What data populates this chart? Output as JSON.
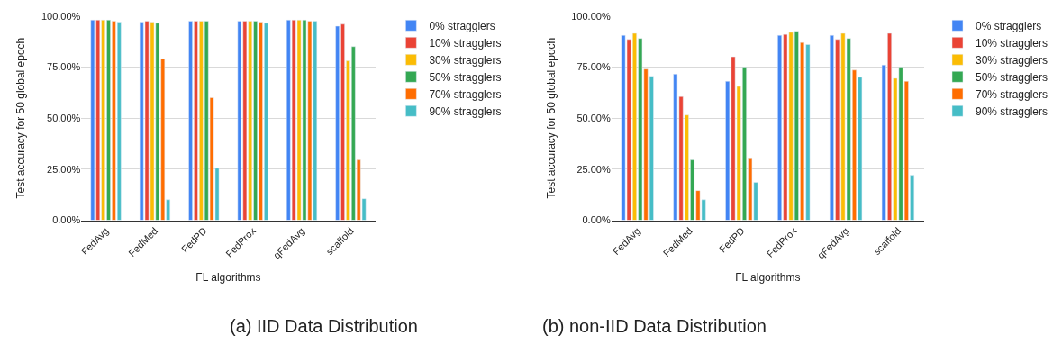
{
  "chart_data": [
    {
      "type": "bar",
      "title": "(a) IID Data Distribution",
      "xlabel": "FL algorithms",
      "ylabel": "Test accuracy for 50 global epoch",
      "categories": [
        "FedAvg",
        "FedMed",
        "FedPD",
        "FedProx",
        "qFedAvg",
        "scaffold"
      ],
      "series": [
        {
          "name": "0% stragglers",
          "color": "#4285f4",
          "values": [
            98,
            97,
            97.5,
            97.5,
            98,
            95
          ]
        },
        {
          "name": "10% stragglers",
          "color": "#ea4335",
          "values": [
            98,
            97.5,
            97.5,
            97.5,
            98,
            96
          ]
        },
        {
          "name": "30% stragglers",
          "color": "#fbbc04",
          "values": [
            98,
            97,
            97.5,
            97.5,
            98,
            78
          ]
        },
        {
          "name": "50% stragglers",
          "color": "#34a853",
          "values": [
            98,
            96.5,
            97.5,
            97.5,
            98,
            85
          ]
        },
        {
          "name": "70% stragglers",
          "color": "#ff6d01",
          "values": [
            97.5,
            79,
            60,
            97,
            97.5,
            29.5
          ]
        },
        {
          "name": "90% stragglers",
          "color": "#46bdc6",
          "values": [
            97,
            10,
            25.5,
            96.5,
            97.5,
            10.5
          ]
        }
      ],
      "ylim": [
        0,
        100
      ],
      "yticks": [
        {
          "value": 0,
          "label": "0.00%"
        },
        {
          "value": 25,
          "label": "25.00%"
        },
        {
          "value": 50,
          "label": "50.00%"
        },
        {
          "value": 75,
          "label": "75.00%"
        },
        {
          "value": 100,
          "label": "100.00%"
        }
      ],
      "grid": "y",
      "legend": "right"
    },
    {
      "type": "bar",
      "title": "(b) non-IID Data Distribution",
      "xlabel": "FL algorithms",
      "ylabel": "Test accuracy for 50 global epoch",
      "categories": [
        "FedAvg",
        "FedMed",
        "FedPD",
        "FedProx",
        "qFedAvg",
        "scaffold"
      ],
      "series": [
        {
          "name": "0% stragglers",
          "color": "#4285f4",
          "values": [
            90.5,
            71.5,
            68,
            90.5,
            90.5,
            76
          ]
        },
        {
          "name": "10% stragglers",
          "color": "#ea4335",
          "values": [
            88.5,
            60.5,
            80,
            91,
            88.5,
            91.5
          ]
        },
        {
          "name": "30% stragglers",
          "color": "#fbbc04",
          "values": [
            91.5,
            51.5,
            65.5,
            92,
            91.5,
            69.5
          ]
        },
        {
          "name": "50% stragglers",
          "color": "#34a853",
          "values": [
            89,
            29.5,
            75,
            92.5,
            89,
            75
          ]
        },
        {
          "name": "70% stragglers",
          "color": "#ff6d01",
          "values": [
            74,
            14.5,
            30.5,
            87,
            73.5,
            68
          ]
        },
        {
          "name": "90% stragglers",
          "color": "#46bdc6",
          "values": [
            70.5,
            10,
            18.5,
            86,
            70,
            22
          ]
        }
      ],
      "ylim": [
        0,
        100
      ],
      "yticks": [
        {
          "value": 0,
          "label": "0.00%"
        },
        {
          "value": 25,
          "label": "25.00%"
        },
        {
          "value": 50,
          "label": "50.00%"
        },
        {
          "value": 75,
          "label": "75.00%"
        },
        {
          "value": 100,
          "label": "100.00%"
        }
      ],
      "grid": "y",
      "legend": "right"
    }
  ]
}
